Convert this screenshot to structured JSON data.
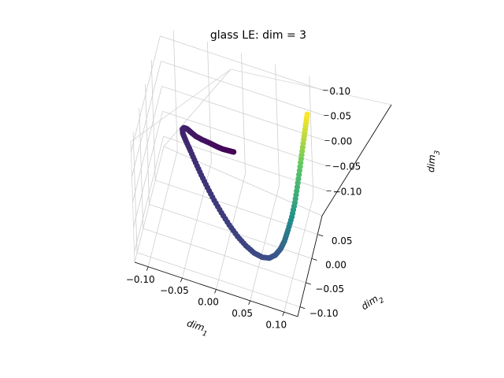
{
  "chart_data": {
    "type": "scatter",
    "projection": "3d",
    "title": "glass LE: dim = 3",
    "xlabel": "dim_1",
    "ylabel": "dim_2",
    "zlabel": "dim_3",
    "xlim": [
      -0.12,
      0.12
    ],
    "ylim": [
      -0.12,
      0.12
    ],
    "zlim": [
      -0.12,
      0.12
    ],
    "xticks": [
      "−0.10",
      "−0.05",
      "0.00",
      "0.05",
      "0.10"
    ],
    "yticks": [
      "−0.10",
      "−0.05",
      "0.00",
      "0.05"
    ],
    "zticks": [
      "−0.10",
      "−0.05",
      "0.00",
      "0.05",
      "0.10"
    ],
    "colormap": [
      "#440154",
      "#3b528b",
      "#21918c",
      "#5ec962",
      "#fde725"
    ],
    "grid": true,
    "legend": "none",
    "points": [
      {
        "x": 0.0,
        "y": 0.04,
        "z": 0.0,
        "c": 0.0
      },
      {
        "x": -0.005,
        "y": 0.025,
        "z": 0.015,
        "c": 0.01
      },
      {
        "x": -0.01,
        "y": 0.01,
        "z": 0.03,
        "c": 0.02
      },
      {
        "x": -0.017,
        "y": -0.003,
        "z": 0.045,
        "c": 0.03
      },
      {
        "x": -0.025,
        "y": -0.015,
        "z": 0.06,
        "c": 0.04
      },
      {
        "x": -0.033,
        "y": -0.025,
        "z": 0.072,
        "c": 0.05
      },
      {
        "x": -0.041,
        "y": -0.031,
        "z": 0.081,
        "c": 0.06
      },
      {
        "x": -0.048,
        "y": -0.032,
        "z": 0.087,
        "c": 0.07
      },
      {
        "x": -0.054,
        "y": -0.03,
        "z": 0.089,
        "c": 0.08
      },
      {
        "x": -0.059,
        "y": -0.027,
        "z": 0.086,
        "c": 0.09
      },
      {
        "x": -0.062,
        "y": -0.024,
        "z": 0.079,
        "c": 0.1
      },
      {
        "x": -0.062,
        "y": -0.022,
        "z": 0.068,
        "c": 0.11
      },
      {
        "x": -0.058,
        "y": -0.02,
        "z": 0.053,
        "c": 0.12
      },
      {
        "x": -0.052,
        "y": -0.019,
        "z": 0.035,
        "c": 0.13
      },
      {
        "x": -0.045,
        "y": -0.019,
        "z": 0.015,
        "c": 0.14
      },
      {
        "x": -0.037,
        "y": -0.02,
        "z": -0.005,
        "c": 0.15
      },
      {
        "x": -0.028,
        "y": -0.022,
        "z": -0.024,
        "c": 0.16
      },
      {
        "x": -0.018,
        "y": -0.025,
        "z": -0.042,
        "c": 0.17
      },
      {
        "x": -0.007,
        "y": -0.029,
        "z": -0.058,
        "c": 0.18
      },
      {
        "x": 0.005,
        "y": -0.034,
        "z": -0.072,
        "c": 0.19
      },
      {
        "x": 0.018,
        "y": -0.04,
        "z": -0.083,
        "c": 0.2
      },
      {
        "x": 0.031,
        "y": -0.045,
        "z": -0.091,
        "c": 0.21
      },
      {
        "x": 0.044,
        "y": -0.049,
        "z": -0.096,
        "c": 0.22
      },
      {
        "x": 0.056,
        "y": -0.05,
        "z": -0.098,
        "c": 0.23
      },
      {
        "x": 0.066,
        "y": -0.048,
        "z": -0.097,
        "c": 0.24
      },
      {
        "x": 0.074,
        "y": -0.042,
        "z": -0.093,
        "c": 0.26
      },
      {
        "x": 0.08,
        "y": -0.033,
        "z": -0.087,
        "c": 0.3
      },
      {
        "x": 0.084,
        "y": -0.022,
        "z": -0.08,
        "c": 0.36
      },
      {
        "x": 0.087,
        "y": -0.008,
        "z": -0.07,
        "c": 0.42
      },
      {
        "x": 0.09,
        "y": 0.008,
        "z": -0.058,
        "c": 0.5
      },
      {
        "x": 0.092,
        "y": 0.024,
        "z": -0.044,
        "c": 0.58
      },
      {
        "x": 0.093,
        "y": 0.04,
        "z": -0.028,
        "c": 0.65
      },
      {
        "x": 0.094,
        "y": 0.056,
        "z": -0.01,
        "c": 0.72
      },
      {
        "x": 0.095,
        "y": 0.07,
        "z": 0.008,
        "c": 0.8
      },
      {
        "x": 0.096,
        "y": 0.084,
        "z": 0.026,
        "c": 0.88
      },
      {
        "x": 0.097,
        "y": 0.096,
        "z": 0.042,
        "c": 0.94
      },
      {
        "x": 0.098,
        "y": 0.106,
        "z": 0.056,
        "c": 1.0
      }
    ]
  }
}
